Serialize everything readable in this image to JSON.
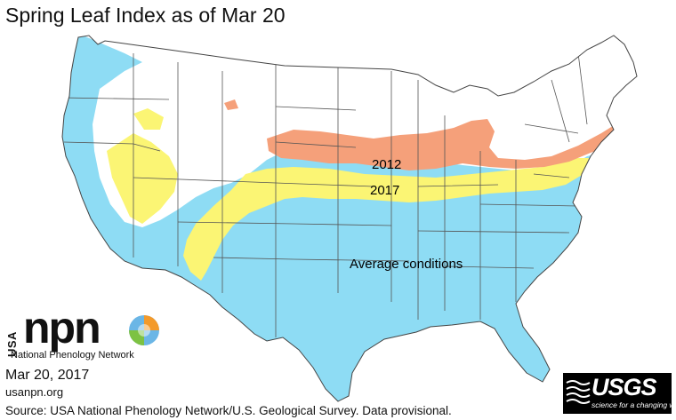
{
  "title": "Spring Leaf Index as of Mar 20",
  "map": {
    "regions": [
      {
        "label": "2012",
        "color": "#f5a07a"
      },
      {
        "label": "2017",
        "color": "#fbf574"
      },
      {
        "label": "Average conditions",
        "color": "#8edcf4"
      }
    ],
    "not_yet_color": "#ffffff",
    "boundary_color": "#555555"
  },
  "logo": {
    "usa": "USA",
    "npn": "npn",
    "network_name": "National Phenology Network"
  },
  "date": "Mar 20, 2017",
  "site": "usanpn.org",
  "source": "Source: USA National Phenology Network/U.S. Geological Survey. Data provisional.",
  "usgs": {
    "name": "USGS",
    "tagline": "science for a changing world"
  }
}
